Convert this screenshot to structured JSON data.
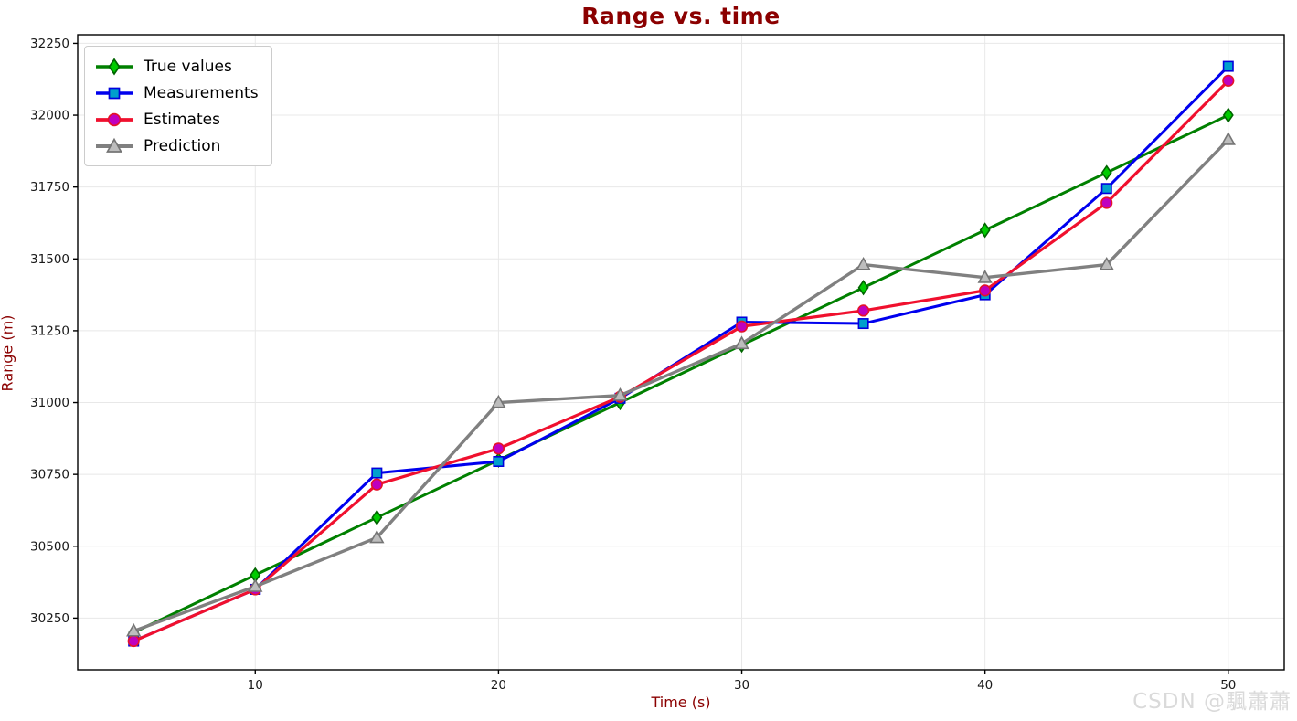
{
  "title": "Range vs. time",
  "watermark": {
    "text": "CSDN @颿蕭蕭"
  },
  "colors": {
    "title": "#8b0000",
    "axis_label": "#8b0000",
    "tick_label": "#1a1a1a",
    "grid": "#e8e8e8",
    "spine": "#000000",
    "watermark": "#dadada",
    "legend_border": "#cccccc"
  },
  "chart_data": {
    "type": "line",
    "title": "Range vs. time",
    "xlabel": "Time (s)",
    "ylabel": "Range (m)",
    "x": [
      5,
      10,
      15,
      20,
      25,
      30,
      35,
      40,
      45,
      50
    ],
    "series": [
      {
        "name": "True values",
        "marker": "diamond",
        "line_color": "#008000",
        "marker_fill": "#00cc00",
        "marker_edge": "#006400",
        "line_width": 3,
        "values": [
          30200,
          30400,
          30600,
          30800,
          31000,
          31200,
          31400,
          31600,
          31800,
          32000
        ]
      },
      {
        "name": "Measurements",
        "marker": "square",
        "line_color": "#0000ee",
        "marker_fill": "#00a0cc",
        "marker_edge": "#0000dd",
        "line_width": 3,
        "values": [
          30170,
          30350,
          30755,
          30795,
          31015,
          31280,
          31275,
          31375,
          31745,
          32170
        ]
      },
      {
        "name": "Estimates",
        "marker": "circle",
        "line_color": "#f0102e",
        "marker_fill": "#bf00bf",
        "marker_edge": "#e51229",
        "line_width": 3.2,
        "values": [
          30170,
          30350,
          30715,
          30840,
          31020,
          31265,
          31320,
          31390,
          31695,
          32120
        ]
      },
      {
        "name": "Prediction",
        "marker": "triangle",
        "line_color": "#808080",
        "marker_fill": "#bdbdbd",
        "marker_edge": "#757575",
        "line_width": 3.4,
        "values": [
          30205,
          30360,
          30530,
          31000,
          31025,
          31205,
          31480,
          31435,
          31480,
          31915
        ]
      }
    ],
    "xlim": [
      2.7,
      52.3
    ],
    "ylim": [
      30070,
      32280
    ],
    "xticks": [
      10,
      20,
      30,
      40,
      50
    ],
    "yticks": [
      30250,
      30500,
      30750,
      31000,
      31250,
      31500,
      31750,
      32000,
      32250
    ],
    "grid": true,
    "legend_position": "upper left"
  }
}
